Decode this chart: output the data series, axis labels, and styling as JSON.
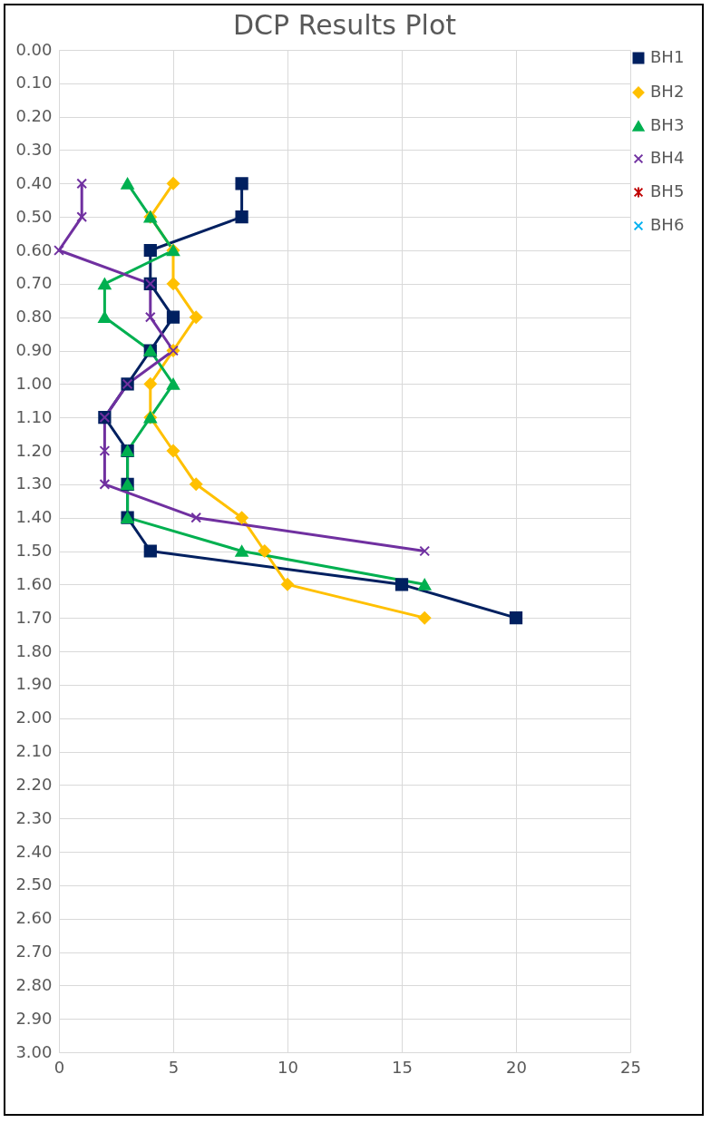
{
  "chart_data": {
    "type": "line",
    "title": "DCP Results Plot",
    "xlim": [
      0,
      25
    ],
    "xticks": [
      0,
      5,
      10,
      15,
      20,
      25
    ],
    "ylim": [
      3,
      0
    ],
    "yticks": [
      {
        "value": 0,
        "label": "0.00"
      },
      {
        "value": 0.1,
        "label": "0.10"
      },
      {
        "value": 0.2,
        "label": "0.20"
      },
      {
        "value": 0.3,
        "label": "0.30"
      },
      {
        "value": 0.4,
        "label": "0.40"
      },
      {
        "value": 0.5,
        "label": "0.50"
      },
      {
        "value": 0.6,
        "label": "0.60"
      },
      {
        "value": 0.7,
        "label": "0.70"
      },
      {
        "value": 0.8,
        "label": "0.80"
      },
      {
        "value": 0.9,
        "label": "0.90"
      },
      {
        "value": 1,
        "label": "1.00"
      },
      {
        "value": 1.1,
        "label": "1.10"
      },
      {
        "value": 1.2,
        "label": "1.20"
      },
      {
        "value": 1.3,
        "label": "1.30"
      },
      {
        "value": 1.4,
        "label": "1.40"
      },
      {
        "value": 1.5,
        "label": "1.50"
      },
      {
        "value": 1.6,
        "label": "1.60"
      },
      {
        "value": 1.7,
        "label": "1.70"
      },
      {
        "value": 1.8,
        "label": "1.80"
      },
      {
        "value": 1.9,
        "label": "1.90"
      },
      {
        "value": 2,
        "label": "2.00"
      },
      {
        "value": 2.1,
        "label": "2.10"
      },
      {
        "value": 2.2,
        "label": "2.20"
      },
      {
        "value": 2.3,
        "label": "2.30"
      },
      {
        "value": 2.4,
        "label": "2.40"
      },
      {
        "value": 2.5,
        "label": "2.50"
      },
      {
        "value": 2.6,
        "label": "2.60"
      },
      {
        "value": 2.7,
        "label": "2.70"
      },
      {
        "value": 2.8,
        "label": "2.80"
      },
      {
        "value": 2.9,
        "label": "2.90"
      },
      {
        "value": 3,
        "label": "3.00"
      }
    ],
    "grid": true,
    "legend": "right",
    "series": [
      {
        "name": "BH1",
        "color": "#002060",
        "marker": "square",
        "x": [
          8,
          8,
          4,
          4,
          5,
          4,
          3,
          2,
          3,
          3,
          3,
          4,
          15,
          20
        ],
        "values": [
          0.4,
          0.5,
          0.6,
          0.7,
          0.8,
          0.9,
          1.0,
          1.1,
          1.2,
          1.3,
          1.4,
          1.5,
          1.6,
          1.7
        ]
      },
      {
        "name": "BH2",
        "color": "#ffc000",
        "marker": "diamond",
        "x": [
          5,
          4,
          5,
          5,
          6,
          5,
          4,
          4,
          5,
          6,
          8,
          9,
          10,
          16
        ],
        "values": [
          0.4,
          0.5,
          0.6,
          0.7,
          0.8,
          0.9,
          1.0,
          1.1,
          1.2,
          1.3,
          1.4,
          1.5,
          1.6,
          1.7
        ]
      },
      {
        "name": "BH3",
        "color": "#00b050",
        "marker": "triangle",
        "x": [
          3,
          4,
          5,
          2,
          2,
          4,
          5,
          4,
          3,
          3,
          3,
          8,
          16
        ],
        "values": [
          0.4,
          0.5,
          0.6,
          0.7,
          0.8,
          0.9,
          1.0,
          1.1,
          1.2,
          1.3,
          1.4,
          1.5,
          1.6
        ]
      },
      {
        "name": "BH4",
        "color": "#7030a0",
        "marker": "cross",
        "x": [
          1,
          1,
          0,
          4,
          4,
          5,
          3,
          2,
          2,
          2,
          6,
          16
        ],
        "values": [
          0.4,
          0.5,
          0.6,
          0.7,
          0.8,
          0.9,
          1.0,
          1.1,
          1.2,
          1.3,
          1.4,
          1.5
        ]
      },
      {
        "name": "BH5",
        "color": "#c00000",
        "marker": "star"
      },
      {
        "name": "BH6",
        "color": "#00b0f0",
        "marker": "cross"
      }
    ]
  }
}
